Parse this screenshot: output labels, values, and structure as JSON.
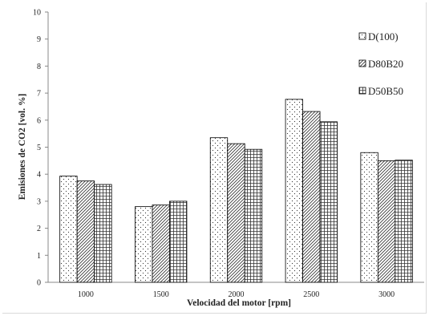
{
  "chart_data": {
    "type": "bar",
    "categories": [
      "1000",
      "1500",
      "2000",
      "2500",
      "3000"
    ],
    "series": [
      {
        "name": "D(100)",
        "pattern": "dots",
        "values": [
          3.93,
          2.8,
          5.35,
          6.77,
          4.8
        ]
      },
      {
        "name": "D80B20",
        "pattern": "diagonal",
        "values": [
          3.75,
          2.86,
          5.13,
          6.32,
          4.5
        ]
      },
      {
        "name": "D50B50",
        "pattern": "grid",
        "values": [
          3.62,
          3.0,
          4.92,
          5.94,
          4.52
        ]
      }
    ],
    "title": "",
    "xlabel": "Velocidad del motor [rpm]",
    "ylabel": "Emisiones de CO2 [vol. %]",
    "ylim": [
      0,
      10
    ],
    "yticks": [
      "0",
      "1",
      "2",
      "3",
      "4",
      "5",
      "6",
      "7",
      "8",
      "9",
      "10"
    ],
    "grid": false,
    "legend_position": "right",
    "colors": {
      "bar_stroke": "#000000",
      "axis": "#888888",
      "text": "#222222"
    }
  }
}
